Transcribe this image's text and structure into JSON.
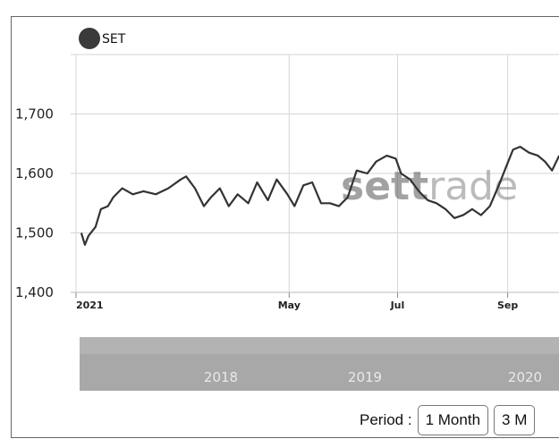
{
  "chart_data": {
    "type": "line",
    "legend": [
      "SET"
    ],
    "legend_position": "top-left",
    "series": [
      {
        "name": "SET",
        "color": "#333333",
        "points": [
          [
            "2021-01-04",
            1500
          ],
          [
            "2021-01-06",
            1480
          ],
          [
            "2021-01-08",
            1495
          ],
          [
            "2021-01-12",
            1510
          ],
          [
            "2021-01-15",
            1540
          ],
          [
            "2021-01-19",
            1545
          ],
          [
            "2021-01-22",
            1560
          ],
          [
            "2021-01-27",
            1575
          ],
          [
            "2021-02-02",
            1565
          ],
          [
            "2021-02-08",
            1570
          ],
          [
            "2021-02-15",
            1565
          ],
          [
            "2021-02-22",
            1575
          ],
          [
            "2021-03-01",
            1590
          ],
          [
            "2021-03-04",
            1595
          ],
          [
            "2021-03-09",
            1575
          ],
          [
            "2021-03-14",
            1545
          ],
          [
            "2021-03-18",
            1560
          ],
          [
            "2021-03-23",
            1575
          ],
          [
            "2021-03-28",
            1545
          ],
          [
            "2021-04-02",
            1565
          ],
          [
            "2021-04-08",
            1550
          ],
          [
            "2021-04-13",
            1585
          ],
          [
            "2021-04-19",
            1555
          ],
          [
            "2021-04-24",
            1590
          ],
          [
            "2021-04-30",
            1565
          ],
          [
            "2021-05-04",
            1545
          ],
          [
            "2021-05-09",
            1580
          ],
          [
            "2021-05-14",
            1585
          ],
          [
            "2021-05-19",
            1550
          ],
          [
            "2021-05-24",
            1550
          ],
          [
            "2021-05-29",
            1545
          ],
          [
            "2021-06-03",
            1560
          ],
          [
            "2021-06-08",
            1605
          ],
          [
            "2021-06-14",
            1600
          ],
          [
            "2021-06-19",
            1620
          ],
          [
            "2021-06-25",
            1630
          ],
          [
            "2021-06-30",
            1625
          ],
          [
            "2021-07-03",
            1600
          ],
          [
            "2021-07-08",
            1590
          ],
          [
            "2021-07-13",
            1570
          ],
          [
            "2021-07-18",
            1555
          ],
          [
            "2021-07-23",
            1550
          ],
          [
            "2021-07-28",
            1540
          ],
          [
            "2021-08-02",
            1525
          ],
          [
            "2021-08-07",
            1530
          ],
          [
            "2021-08-12",
            1540
          ],
          [
            "2021-08-17",
            1530
          ],
          [
            "2021-08-22",
            1545
          ],
          [
            "2021-08-27",
            1580
          ],
          [
            "2021-08-31",
            1610
          ],
          [
            "2021-09-04",
            1640
          ],
          [
            "2021-09-08",
            1645
          ],
          [
            "2021-09-13",
            1635
          ],
          [
            "2021-09-18",
            1630
          ],
          [
            "2021-09-22",
            1620
          ],
          [
            "2021-09-26",
            1605
          ],
          [
            "2021-09-30",
            1630
          ]
        ]
      }
    ],
    "x": {
      "type": "date",
      "ticks": [
        {
          "label": "2021",
          "at": "2021-01-01"
        },
        {
          "label": "May",
          "at": "2021-05-01"
        },
        {
          "label": "Jul",
          "at": "2021-07-01"
        },
        {
          "label": "Sep",
          "at": "2021-09-01"
        }
      ]
    },
    "y": {
      "ticks": [
        "1,400",
        "1,500",
        "1,600",
        "1,700"
      ],
      "tick_values": [
        1400,
        1500,
        1600,
        1700
      ],
      "ylim": [
        1400,
        1800
      ]
    },
    "grid": true,
    "navigator": {
      "labels": [
        "2018",
        "2019",
        "2020"
      ],
      "fill": "#a8a8a8"
    },
    "watermark": {
      "part1": "sett",
      "part2": "rade"
    }
  },
  "controls": {
    "period_label": "Period :",
    "buttons": [
      "1 Month",
      "3 M"
    ]
  }
}
